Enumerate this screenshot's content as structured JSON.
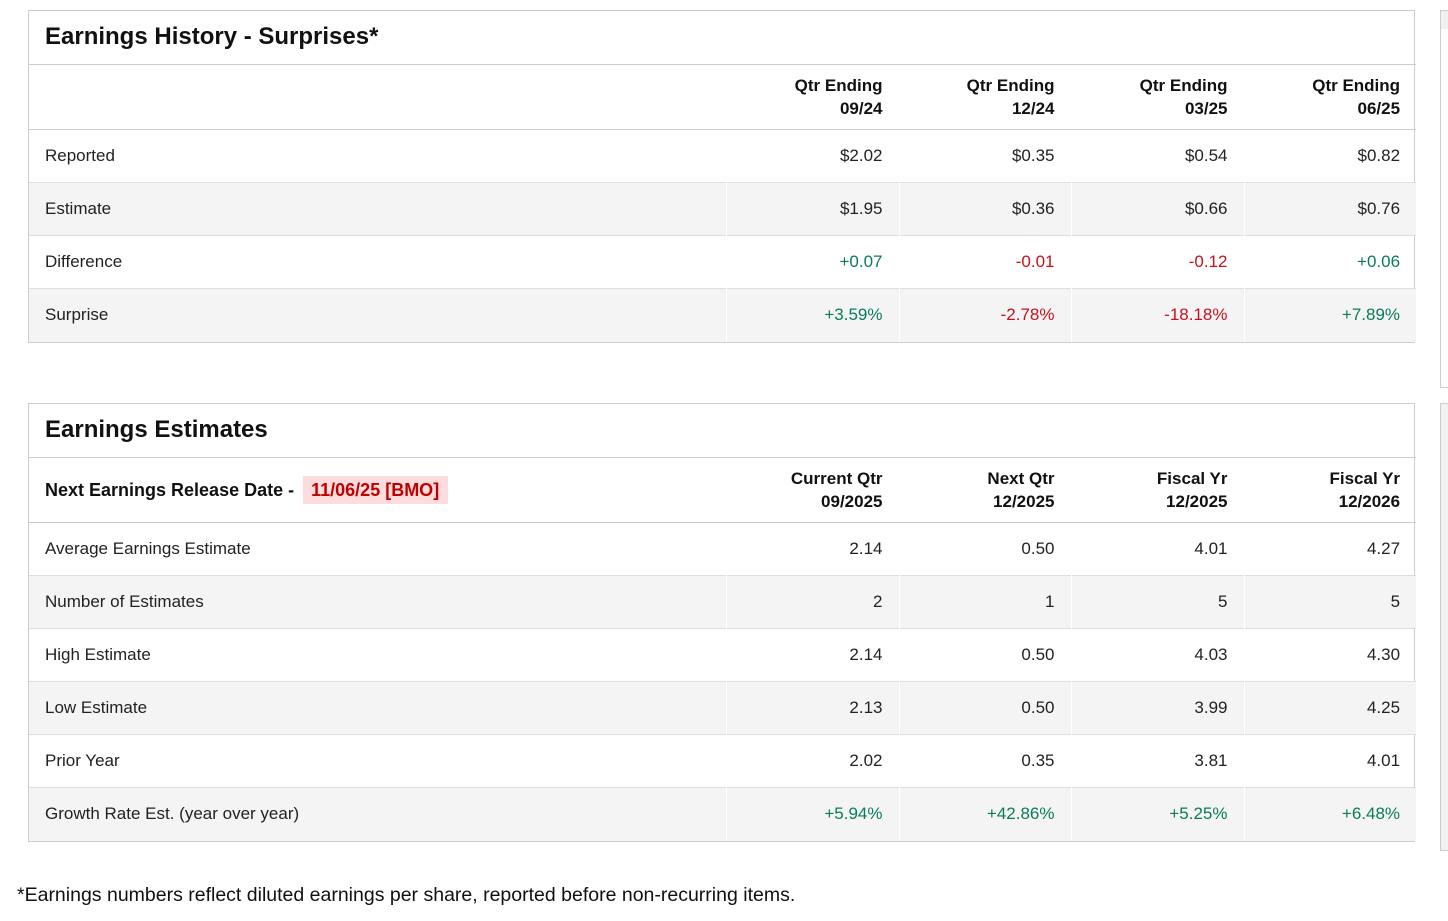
{
  "colors": {
    "positive": "#0a7b5a",
    "negative": "#c41220",
    "highlight_bg": "#fcdcdc",
    "highlight_text": "#c00000",
    "row_alt_bg": "#f4f4f4",
    "border": "#cccccc",
    "row_border": "#dddddd",
    "text": "#222222"
  },
  "history_table": {
    "title": "Earnings History - Surprises*",
    "columns": [
      {
        "line1": "Qtr Ending",
        "line2": "09/24"
      },
      {
        "line1": "Qtr Ending",
        "line2": "12/24"
      },
      {
        "line1": "Qtr Ending",
        "line2": "03/25"
      },
      {
        "line1": "Qtr Ending",
        "line2": "06/25"
      }
    ],
    "rows": [
      {
        "label": "Reported",
        "values": [
          "$2.02",
          "$0.35",
          "$0.54",
          "$0.82"
        ]
      },
      {
        "label": "Estimate",
        "values": [
          "$1.95",
          "$0.36",
          "$0.66",
          "$0.76"
        ]
      },
      {
        "label": "Difference",
        "values": [
          "+0.07",
          "-0.01",
          "-0.12",
          "+0.06"
        ]
      },
      {
        "label": "Surprise",
        "values": [
          "+3.59%",
          "-2.78%",
          "-18.18%",
          "+7.89%"
        ]
      }
    ]
  },
  "estimates_table": {
    "title": "Earnings Estimates",
    "release_label": "Next Earnings Release Date -",
    "release_date": "11/06/25 [BMO]",
    "columns": [
      {
        "line1": "Current Qtr",
        "line2": "09/2025"
      },
      {
        "line1": "Next Qtr",
        "line2": "12/2025"
      },
      {
        "line1": "Fiscal Yr",
        "line2": "12/2025"
      },
      {
        "line1": "Fiscal Yr",
        "line2": "12/2026"
      }
    ],
    "rows": [
      {
        "label": "Average Earnings Estimate",
        "values": [
          "2.14",
          "0.50",
          "4.01",
          "4.27"
        ]
      },
      {
        "label": "Number of Estimates",
        "values": [
          "2",
          "1",
          "5",
          "5"
        ]
      },
      {
        "label": "High Estimate",
        "values": [
          "2.14",
          "0.50",
          "4.03",
          "4.30"
        ]
      },
      {
        "label": "Low Estimate",
        "values": [
          "2.13",
          "0.50",
          "3.99",
          "4.25"
        ]
      },
      {
        "label": "Prior Year",
        "values": [
          "2.02",
          "0.35",
          "3.81",
          "4.01"
        ]
      },
      {
        "label": "Growth Rate Est. (year over year)",
        "values": [
          "+5.94%",
          "+42.86%",
          "+5.25%",
          "+6.48%"
        ]
      }
    ]
  },
  "footnote": "*Earnings numbers reflect diluted earnings per share, reported before non-recurring items."
}
